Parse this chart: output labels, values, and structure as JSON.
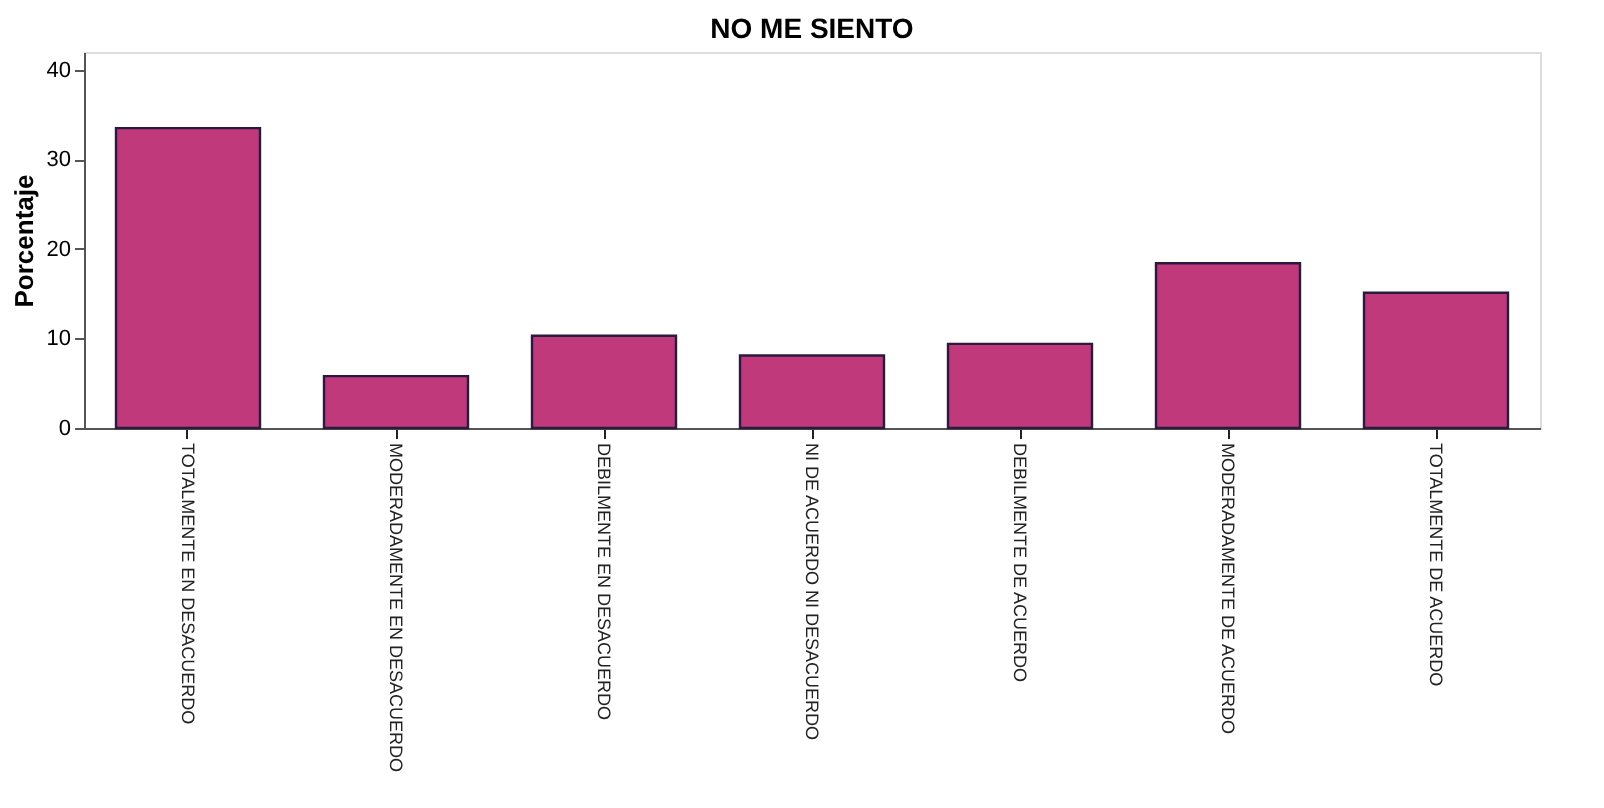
{
  "chart_data": {
    "type": "bar",
    "title": "NO ME SIENTO",
    "ylabel": "Porcentaje",
    "categories": [
      "TOTALMENTE EN DESACUERDO",
      "MODERADAMENTE EN DESACUERDO",
      "DEBILMENTE EN DESACUERDO",
      "NI DE ACUERDO NI DESACUERDO",
      "DEBILMENTE DE ACUERDO",
      "MODERADAMENTE DE ACUERDO",
      "TOTALMENTE DE ACUERDO"
    ],
    "values": [
      33.5,
      5.8,
      10.3,
      8.1,
      9.4,
      18.4,
      15.1
    ],
    "color": "#c0397a",
    "ylim": [
      0,
      42
    ],
    "yticks": [
      0,
      10,
      20,
      30,
      40
    ],
    "grid": false
  }
}
